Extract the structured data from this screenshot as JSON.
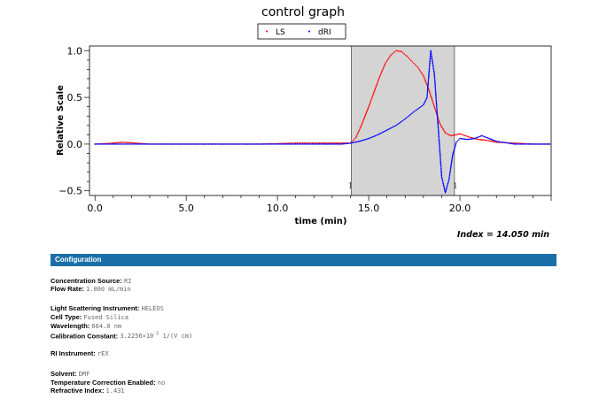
{
  "chart_data": {
    "type": "line",
    "title": "control graph",
    "xlabel": "time (min)",
    "ylabel": "Relative Scale",
    "xlim": [
      -0.3,
      25.0
    ],
    "ylim": [
      -0.55,
      1.05
    ],
    "xticks": [
      0.0,
      5.0,
      10.0,
      15.0,
      20.0
    ],
    "xtick_labels": [
      "0.0",
      "5.0",
      "10.0",
      "15.0",
      "20.0"
    ],
    "yticks": [
      -0.5,
      0.0,
      0.5,
      1.0
    ],
    "ytick_labels": [
      "−0.5",
      "0.0",
      "0.5",
      "1.0"
    ],
    "legend": "top-center",
    "grid": false,
    "peak_region": {
      "start": 14.05,
      "end": 19.7,
      "start_label": "1",
      "end_label": "1"
    },
    "series": [
      {
        "name": "LS",
        "color": "#ff0000",
        "style": "dots",
        "x": [
          0.0,
          1.0,
          1.5,
          3.0,
          5.0,
          7.0,
          9.0,
          11.0,
          13.0,
          14.0,
          14.3,
          14.6,
          15.0,
          15.3,
          15.6,
          15.9,
          16.2,
          16.5,
          16.8,
          17.1,
          17.4,
          17.7,
          18.0,
          18.3,
          18.6,
          18.9,
          19.2,
          19.5,
          19.8,
          20.0,
          20.3,
          20.6,
          21.0,
          21.5,
          22.0,
          23.0,
          24.0,
          25.0
        ],
        "y": [
          0.0,
          0.01,
          0.02,
          0.0,
          0.0,
          0.0,
          0.0,
          0.01,
          0.01,
          0.01,
          0.07,
          0.2,
          0.4,
          0.56,
          0.72,
          0.86,
          0.95,
          1.0,
          0.99,
          0.94,
          0.88,
          0.82,
          0.73,
          0.58,
          0.4,
          0.22,
          0.12,
          0.09,
          0.1,
          0.11,
          0.09,
          0.07,
          0.05,
          0.04,
          0.02,
          0.01,
          0.0,
          0.0
        ]
      },
      {
        "name": "dRI",
        "color": "#0000ff",
        "style": "dots",
        "x": [
          0.0,
          2.0,
          4.0,
          6.0,
          8.0,
          10.0,
          12.0,
          13.5,
          14.0,
          14.5,
          15.0,
          15.5,
          16.0,
          16.5,
          17.0,
          17.5,
          18.0,
          18.2,
          18.4,
          18.6,
          18.8,
          19.0,
          19.2,
          19.4,
          19.6,
          19.8,
          20.0,
          20.4,
          20.8,
          21.2,
          21.6,
          22.0,
          23.0,
          24.0,
          25.0
        ],
        "y": [
          0.0,
          0.0,
          0.0,
          0.0,
          0.0,
          0.0,
          0.0,
          0.0,
          0.01,
          0.03,
          0.06,
          0.1,
          0.15,
          0.2,
          0.27,
          0.35,
          0.42,
          0.5,
          1.0,
          0.75,
          0.2,
          -0.35,
          -0.52,
          -0.38,
          -0.12,
          0.02,
          0.06,
          0.05,
          0.06,
          0.09,
          0.06,
          0.03,
          0.0,
          0.0,
          0.0
        ]
      }
    ]
  },
  "index_readout": "Index = 14.050 min",
  "config": {
    "header": "Configuration",
    "concentration_source": {
      "label": "Concentration Source:",
      "value": "RI"
    },
    "flow_rate": {
      "label": "Flow Rate:",
      "value": "1.000 mL/min"
    },
    "ls_instrument": {
      "label": "Light Scattering Instrument:",
      "value": "HELEOS"
    },
    "cell_type": {
      "label": "Cell Type:",
      "value": "Fused Silica"
    },
    "wavelength": {
      "label": "Wavelength:",
      "value": "664.0 nm"
    },
    "calibration_constant": {
      "label": "Calibration Constant:",
      "mantissa": "3.2256×10",
      "exponent": "-5",
      "unit": " 1/(V cm)"
    },
    "ri_instrument": {
      "label": "RI Instrument:",
      "value": "rEX"
    },
    "solvent": {
      "label": "Solvent:",
      "value": "DMF"
    },
    "temp_correction": {
      "label": "Temperature Correction Enabled:",
      "value": "no"
    },
    "refractive_index": {
      "label": "Refractive Index:",
      "value": "1.431"
    }
  }
}
